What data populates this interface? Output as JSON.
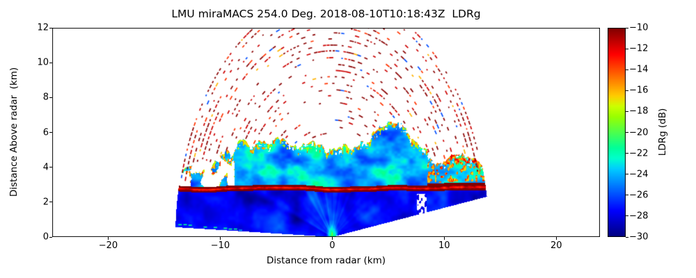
{
  "chart_data": {
    "type": "heatmap",
    "title": "LMU miraMACS 254.0 Deg. 2018-08-10T10:18:43Z  LDRg",
    "azimuth_deg": 254.0,
    "timestamp": "2018-08-10T10:18:43Z",
    "quantity": "LDRg",
    "xlabel": "Distance from radar (km)",
    "ylabel": "Distance Above radar  (km)",
    "x_axis": {
      "range": [
        -25.0,
        23.9
      ],
      "ticks": [
        -20,
        -10,
        0,
        10,
        20
      ],
      "tick_labels": [
        "−20",
        "−10",
        "0",
        "10",
        "20"
      ]
    },
    "y_axis": {
      "range": [
        0,
        12
      ],
      "ticks": [
        0,
        2,
        4,
        6,
        8,
        10,
        12
      ],
      "tick_labels": [
        "0",
        "2",
        "4",
        "6",
        "8",
        "10",
        "12"
      ]
    },
    "colorbar": {
      "label": "LDRg (dB)",
      "colormap": "jet",
      "min": -30,
      "max": -10,
      "ticks": [
        -10,
        -12,
        -14,
        -16,
        -18,
        -20,
        -22,
        -24,
        -26,
        -28,
        -30
      ],
      "tick_labels": [
        "−10",
        "−12",
        "−14",
        "−16",
        "−18",
        "−20",
        "−22",
        "−24",
        "−26",
        "−28",
        "−30"
      ]
    },
    "scan_features": {
      "scan_type": "RHI sector scan through zenith",
      "max_range_km": 14.0,
      "min_elevation_deg_left": 2.3,
      "min_elevation_deg_right": 9.5,
      "melting_layer_height_km": 2.78,
      "melting_layer_thickness_km": 0.32,
      "melting_layer_ldr_db": -12.8,
      "rain_below_melting_layer_ldr_db": -27,
      "cloud_mean_ldr_db": -24,
      "cloud_top_edge_ldr_db": -16,
      "noise_speckle_ldr_db": -10,
      "attenuation_gap_x_km": [
        7.55,
        8.45
      ],
      "zenith_artifact": {
        "x_km": 0,
        "top_km": 0.9,
        "ldr_db": -18.5
      },
      "sparse_cloud_region_x_km": [
        -14,
        -8.7
      ],
      "cloud_top_profile_km": [
        [
          -14,
          3.2
        ],
        [
          -12,
          4.1
        ],
        [
          -11,
          3.9
        ],
        [
          -10,
          4.5
        ],
        [
          -9,
          5.0
        ],
        [
          -8,
          5.4
        ],
        [
          -7,
          5.1
        ],
        [
          -6,
          5.5
        ],
        [
          -5,
          5.6
        ],
        [
          -4,
          5.3
        ],
        [
          -3,
          5.0
        ],
        [
          -2,
          5.4
        ],
        [
          -1,
          5.2
        ],
        [
          0,
          4.9
        ],
        [
          1,
          5.1
        ],
        [
          2,
          5.3
        ],
        [
          3,
          5.6
        ],
        [
          4,
          6.0
        ],
        [
          5,
          6.4
        ],
        [
          6,
          6.55
        ],
        [
          7,
          5.8
        ],
        [
          8,
          5.1
        ],
        [
          9,
          4.4
        ],
        [
          10,
          4.3
        ],
        [
          11,
          4.7
        ],
        [
          12,
          4.6
        ],
        [
          13,
          4.45
        ],
        [
          14,
          4.2
        ]
      ],
      "speckle_ring_start_km": 5.6,
      "speckle_ring_step_km": 0.36
    }
  }
}
